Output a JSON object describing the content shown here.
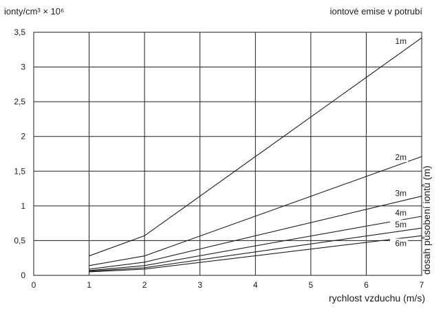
{
  "chart_data": {
    "type": "line",
    "title": "iontové emise v potrubí",
    "ylabel": "ionty/cm³ × 10⁶",
    "xlabel": "rychlost vzduchu (m/s)",
    "right_label": "dosah působení iontů (m)",
    "xlim": [
      0,
      7
    ],
    "ylim": [
      0,
      3.5
    ],
    "x_ticks": [
      "0",
      "1",
      "2",
      "3",
      "4",
      "5",
      "6",
      "7"
    ],
    "y_ticks": [
      "0",
      "0,5",
      "1",
      "1,5",
      "2",
      "2,5",
      "3",
      "3,5"
    ],
    "grid": true,
    "x": [
      1,
      2,
      7
    ],
    "series": [
      {
        "name": "1m",
        "values": [
          0.28,
          0.57,
          3.42
        ]
      },
      {
        "name": "2m",
        "values": [
          0.14,
          0.28,
          1.71
        ]
      },
      {
        "name": "3m",
        "values": [
          0.09,
          0.19,
          1.14
        ]
      },
      {
        "name": "4m",
        "values": [
          0.07,
          0.14,
          0.85
        ]
      },
      {
        "name": "5m",
        "values": [
          0.06,
          0.11,
          0.68
        ]
      },
      {
        "name": "6m",
        "values": [
          0.05,
          0.09,
          0.57
        ]
      }
    ],
    "series_label_y": [
      3.33,
      1.66,
      1.14,
      0.86,
      0.69,
      0.42
    ]
  }
}
